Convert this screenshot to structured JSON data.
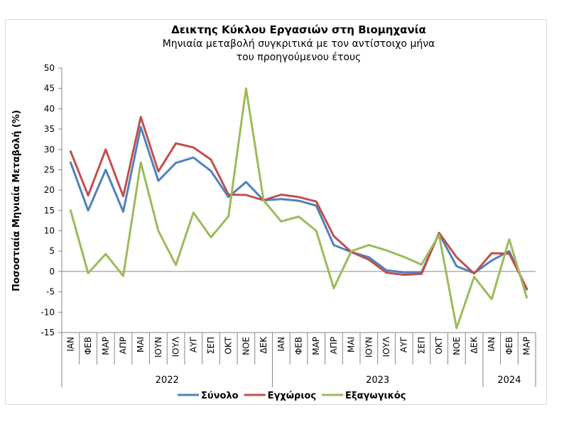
{
  "chart_data": {
    "type": "line",
    "title": "Δεικτης Κύκλου Εργασιών στη Βιομηχανία",
    "subtitle_lines": [
      "Μηνιαία μεταβολή συγκριτικά με τον αντίστοιχο μήνα",
      "του προηγούμενου έτους"
    ],
    "ylabel": "Ποσοστιαία Μηνιαία Μεταβολή (%)",
    "xlabel": "",
    "ylim": [
      -15,
      50
    ],
    "yticks": [
      -15,
      -10,
      -5,
      0,
      5,
      10,
      15,
      20,
      25,
      30,
      35,
      40,
      45,
      50
    ],
    "grid": false,
    "legend_position": "bottom",
    "categories": [
      "ΙΑΝ",
      "ΦΕΒ",
      "ΜΑΡ",
      "ΑΠΡ",
      "ΜΑΙ",
      "ΙΟΥΝ",
      "ΙΟΥΛ",
      "ΑΥΓ",
      "ΣΕΠ",
      "ΟΚΤ",
      "ΝΟΕ",
      "ΔΕΚ",
      "ΙΑΝ",
      "ΦΕΒ",
      "ΜΑΡ",
      "ΑΠΡ",
      "ΜΑΙ",
      "ΙΟΥΝ",
      "ΙΟΥΛ",
      "ΑΥΓ",
      "ΣΕΠ",
      "ΟΚΤ",
      "ΝΟΕ",
      "ΔΕΚ",
      "ΙΑΝ",
      "ΦΕΒ",
      "ΜΑΡ"
    ],
    "year_groups": [
      {
        "label": "2022",
        "count": 12
      },
      {
        "label": "2023",
        "count": 12
      },
      {
        "label": "2024",
        "count": 3
      }
    ],
    "series": [
      {
        "name": "Σύνολο",
        "color": "#4f81bd",
        "values": [
          26.8,
          15.0,
          25.0,
          14.7,
          35.5,
          22.3,
          26.7,
          28.0,
          24.7,
          18.3,
          22.0,
          17.5,
          17.8,
          17.4,
          16.2,
          6.5,
          4.8,
          3.5,
          0.3,
          -0.2,
          -0.2,
          9.3,
          1.3,
          -0.4,
          2.7,
          5.0,
          -4.4
        ]
      },
      {
        "name": "Εγχώριος",
        "color": "#c0504d",
        "values": [
          29.5,
          18.7,
          30.0,
          18.5,
          38.0,
          24.6,
          31.5,
          30.5,
          27.5,
          18.9,
          18.8,
          17.5,
          18.9,
          18.3,
          17.2,
          8.7,
          4.8,
          2.9,
          -0.3,
          -0.8,
          -0.6,
          9.5,
          3.5,
          -0.5,
          4.5,
          4.4,
          -4.2
        ]
      },
      {
        "name": "Εξαγωγικός",
        "color": "#9bbb59",
        "values": [
          15.0,
          -0.4,
          4.3,
          -1.1,
          26.8,
          10.0,
          1.6,
          14.5,
          8.4,
          13.6,
          45.0,
          17.5,
          12.3,
          13.5,
          10.0,
          -4.1,
          5.0,
          6.5,
          5.2,
          3.6,
          1.7,
          9.0,
          -13.9,
          -1.3,
          -6.8,
          7.9,
          -6.4
        ]
      }
    ]
  }
}
